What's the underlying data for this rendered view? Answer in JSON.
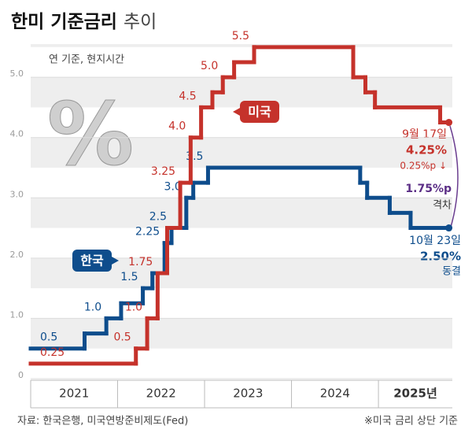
{
  "chart_data": {
    "type": "step",
    "title": "한미 기준금리",
    "title_suffix": "추이",
    "subtitle": "연 기준, 현지시간",
    "icon_text": "%",
    "categories": [
      "2021",
      "2022",
      "2023",
      "2024",
      "2025년"
    ],
    "xlim": [
      2021,
      2025.85
    ],
    "ylim": [
      0,
      5.55
    ],
    "yticks": [
      0,
      {
        "value": 1,
        "label": "1.0"
      },
      {
        "value": 2,
        "label": "2.0"
      },
      {
        "value": 3,
        "label": "3.0"
      },
      {
        "value": 4,
        "label": "4.0"
      },
      {
        "value": 5,
        "label": "5.0"
      }
    ],
    "grid": true,
    "series": [
      {
        "name": "한국",
        "color": "#0e4d8c",
        "x": [
          2021.0,
          2021.62,
          2021.87,
          2022.04,
          2022.29,
          2022.4,
          2022.54,
          2022.62,
          2022.79,
          2022.87,
          2023.04,
          2024.79,
          2024.87,
          2025.13,
          2025.37,
          2025.81
        ],
        "values": [
          0.5,
          0.75,
          1.0,
          1.25,
          1.5,
          1.75,
          2.25,
          2.5,
          3.0,
          3.25,
          3.5,
          3.25,
          3.0,
          2.75,
          2.5,
          2.5
        ],
        "value_labels": [
          "0.5",
          null,
          "1.0",
          null,
          "1.5",
          null,
          "2.25",
          "2.5",
          "3.0",
          null,
          "3.5",
          null,
          null,
          null,
          null,
          null
        ]
      },
      {
        "name": "미국",
        "color": "#c5322b",
        "x": [
          2021.0,
          2022.21,
          2022.34,
          2022.46,
          2022.57,
          2022.72,
          2022.84,
          2022.96,
          2023.09,
          2023.21,
          2023.34,
          2023.57,
          2024.71,
          2024.85,
          2024.96,
          2025.71,
          2025.81
        ],
        "values": [
          0.25,
          0.5,
          1.0,
          1.75,
          2.5,
          3.25,
          4.0,
          4.5,
          4.75,
          5.0,
          5.25,
          5.5,
          5.0,
          4.75,
          4.5,
          4.25,
          4.25
        ],
        "value_labels": [
          "0.25",
          "0.5",
          "1.0",
          "1.75",
          null,
          "3.25",
          "4.0",
          "4.5",
          null,
          "5.0",
          null,
          "5.5",
          null,
          null,
          null,
          null,
          null
        ]
      }
    ],
    "annotations": {
      "us_date": "9월 17일",
      "us_rate": "4.25%",
      "us_change": "0.25%p ↓",
      "gap": "1.75%p",
      "gap_label": "격차",
      "kr_date": "10월 23일",
      "kr_rate": "2.50%",
      "kr_status": "동결"
    },
    "source": "자료: 한국은행, 미국연방준비제도(Fed)",
    "note": "※미국 금리 상단 기준"
  }
}
